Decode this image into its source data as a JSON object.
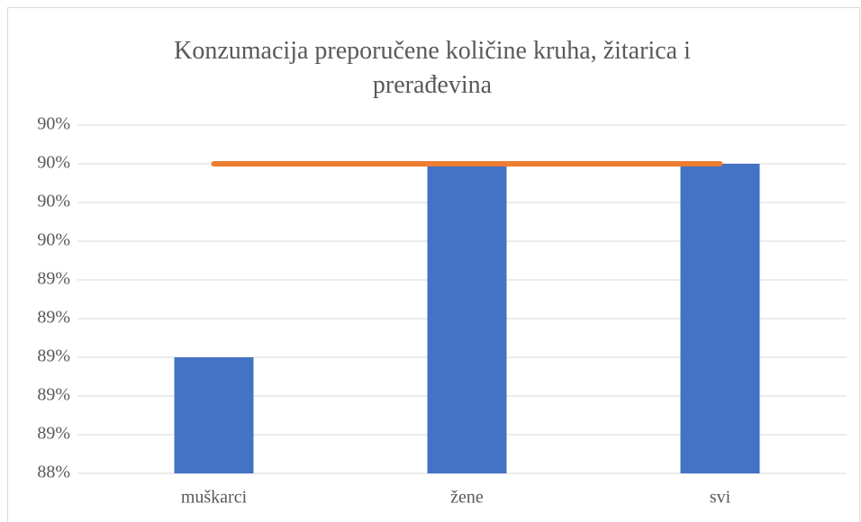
{
  "chart_data": {
    "type": "bar",
    "title": "Konzumacija preporučene količine kruha, žitarica i prerađevina",
    "categories": [
      "muškarci",
      "žene",
      "svi"
    ],
    "series": [
      {
        "type": "bar",
        "color": "#4472c4",
        "values": [
          89.0,
          90.0,
          90.0
        ]
      },
      {
        "type": "line",
        "color": "#ed7d31",
        "values": [
          90.0,
          90.0,
          90.0
        ]
      }
    ],
    "ylim": [
      88.4,
      90.2
    ],
    "yticks": [
      {
        "value": 88.4,
        "label": "88%"
      },
      {
        "value": 88.6,
        "label": "89%"
      },
      {
        "value": 88.8,
        "label": "89%"
      },
      {
        "value": 89.0,
        "label": "89%"
      },
      {
        "value": 89.2,
        "label": "89%"
      },
      {
        "value": 89.4,
        "label": "89%"
      },
      {
        "value": 89.6,
        "label": "90%"
      },
      {
        "value": 89.8,
        "label": "90%"
      },
      {
        "value": 90.0,
        "label": "90%"
      },
      {
        "value": 90.2,
        "label": "90%"
      }
    ],
    "grid": true
  }
}
